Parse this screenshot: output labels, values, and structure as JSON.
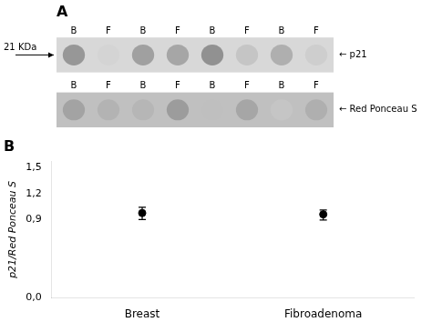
{
  "chart_data": [
    {
      "type": "blot",
      "title": "A",
      "annotations": [
        "21 KDa"
      ],
      "series": [
        {
          "name": "← p21",
          "categories": [
            "B",
            "F",
            "B",
            "F",
            "B",
            "F",
            "B",
            "F"
          ],
          "values": [
            0.68,
            0.28,
            0.62,
            0.58,
            0.72,
            0.38,
            0.52,
            0.32
          ],
          "color": "#d8d8d8"
        },
        {
          "name": "← Red Ponceau S",
          "categories": [
            "B",
            "F",
            "B",
            "F",
            "B",
            "F",
            "B",
            "F"
          ],
          "values": [
            0.6,
            0.5,
            0.48,
            0.65,
            0.42,
            0.58,
            0.38,
            0.52
          ],
          "color": "#c0c0c0"
        }
      ]
    },
    {
      "type": "scatter",
      "title": "B",
      "categories": [
        "Breast",
        "Fibroadenoma"
      ],
      "values": [
        0.975,
        0.96
      ],
      "errors_upper": [
        0.065,
        0.05
      ],
      "errors_lower": [
        0.075,
        0.065
      ],
      "color": "#000000",
      "marker": "circle",
      "ylabel": "p21/Red Ponceau S",
      "ylim": [
        0.0,
        1.57
      ],
      "yticks": [
        {
          "value": 0.0,
          "label": "0,0"
        },
        {
          "value": 0.9,
          "label": "0,9"
        },
        {
          "value": 1.2,
          "label": "1,2"
        },
        {
          "value": 1.5,
          "label": "1,5"
        }
      ],
      "grid": false
    }
  ]
}
